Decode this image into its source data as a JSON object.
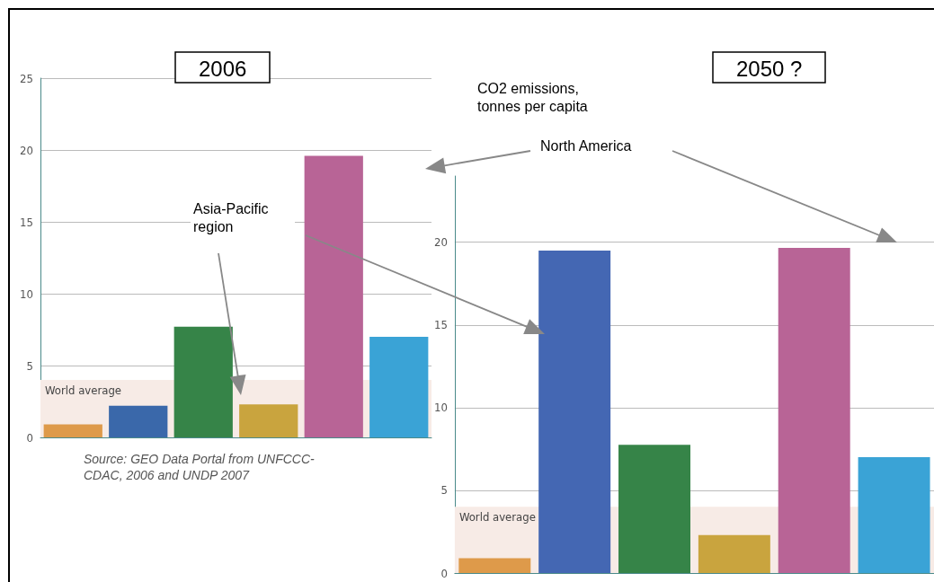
{
  "chart_data": [
    {
      "type": "bar",
      "title": "2006",
      "categories": [
        null,
        null,
        null,
        null,
        null,
        null
      ],
      "values": [
        0.9,
        2.2,
        7.7,
        2.3,
        19.6,
        7.0
      ],
      "colors": [
        "#de9a4a",
        "#3a68aa",
        "#368448",
        "#c9a43e",
        "#b86496",
        "#3aa3d6"
      ],
      "ylim": [
        0,
        25
      ],
      "yticks": [
        0,
        5,
        10,
        15,
        20,
        25
      ],
      "grid": "y",
      "bands": [
        {
          "axis": "y",
          "from": 0,
          "to": 4,
          "label": "World average",
          "color": "#f7ebe6"
        }
      ],
      "annotations": [
        "CO2 emissions, tonnes per capita",
        "Asia-Pacific region",
        "Source: GEO Data Portal from UNFCCC-CDAC, 2006 and UNDP 2007"
      ]
    },
    {
      "type": "bar",
      "title": "2050 ?",
      "categories": [
        null,
        null,
        null,
        null,
        null,
        null
      ],
      "values": [
        0.9,
        19.5,
        7.75,
        2.3,
        19.65,
        7.0
      ],
      "colors": [
        "#de9a4a",
        "#4467b3",
        "#368448",
        "#c9a43e",
        "#b86496",
        "#3aa3d6"
      ],
      "ylim": [
        0,
        24
      ],
      "yticks": [
        0,
        5,
        10,
        15,
        20
      ],
      "grid": "y",
      "bands": [
        {
          "axis": "y",
          "from": 0,
          "to": 4,
          "label": "World average",
          "color": "#f7ebe6"
        }
      ],
      "annotations": [
        "North America"
      ]
    }
  ]
}
